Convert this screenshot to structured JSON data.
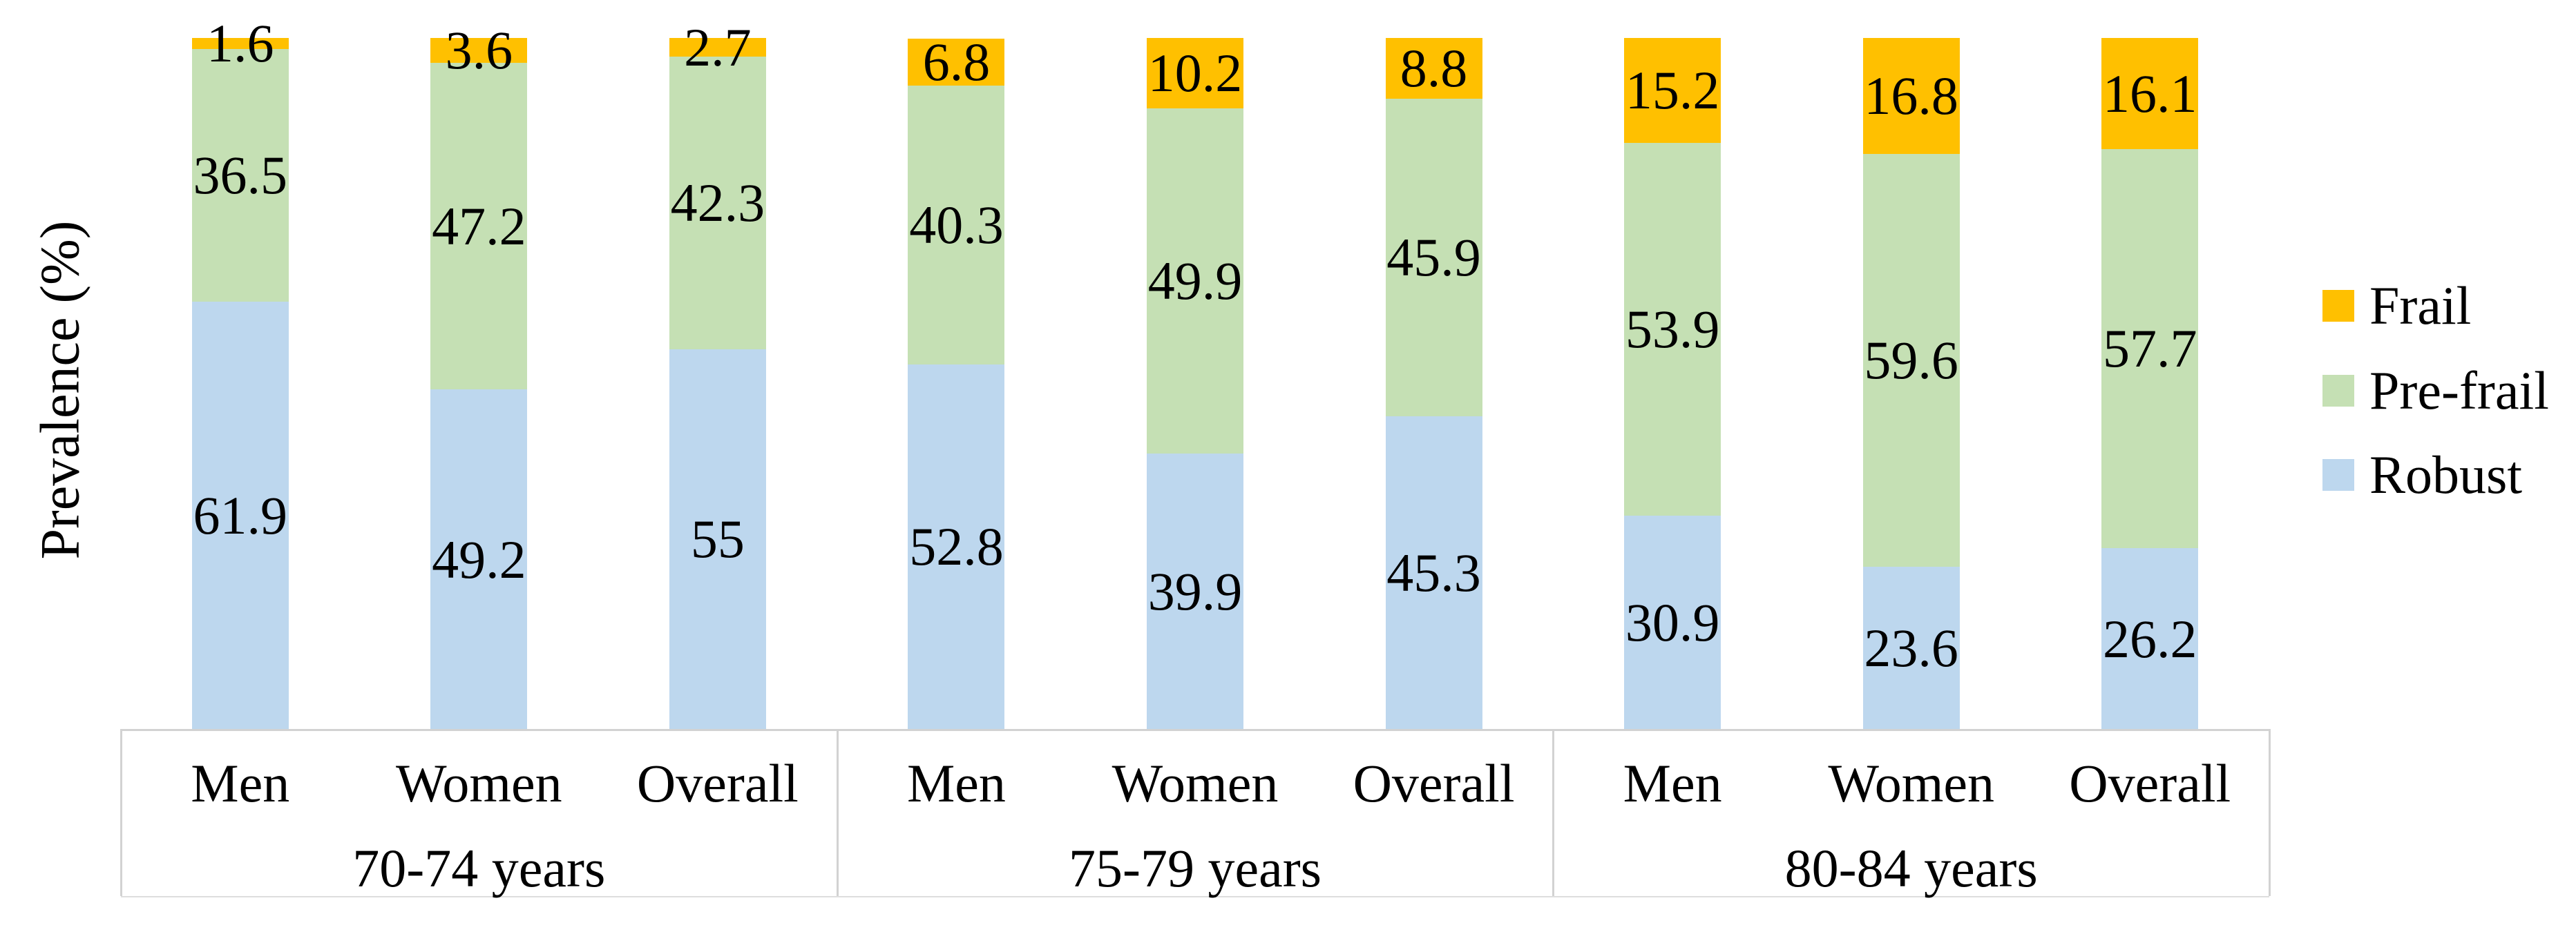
{
  "chart_data": {
    "type": "bar",
    "subtype": "stacked-100-column",
    "title": "",
    "ylabel": "Prevalence (%)",
    "ylim": [
      0,
      100
    ],
    "grid": false,
    "legend_position": "right",
    "x_axis": {
      "group_labels": [
        "70-74 years",
        "75-79 years",
        "80-84 years"
      ],
      "categories_per_group": [
        "Men",
        "Women",
        "Overall"
      ]
    },
    "series": [
      {
        "name": "Robust",
        "color": "#BDD7EE",
        "values": [
          61.9,
          49.2,
          55,
          52.8,
          39.9,
          45.3,
          30.9,
          23.6,
          26.2
        ]
      },
      {
        "name": "Pre-frail",
        "color": "#C5E0B4",
        "values": [
          36.5,
          47.2,
          42.3,
          40.3,
          49.9,
          45.9,
          53.9,
          59.6,
          57.7
        ]
      },
      {
        "name": "Frail",
        "color": "#FFC000",
        "values": [
          1.6,
          3.6,
          2.7,
          6.8,
          10.2,
          8.8,
          15.2,
          16.8,
          16.1
        ]
      }
    ],
    "legend": {
      "items": [
        {
          "label": "Frail",
          "color": "#FFC000"
        },
        {
          "label": "Pre-frail",
          "color": "#C5E0B4"
        },
        {
          "label": "Robust",
          "color": "#BDD7EE"
        }
      ]
    },
    "colors": {
      "axis_line": "#D2D2D2",
      "label_text": "#000000",
      "background": "#FFFFFF"
    }
  }
}
